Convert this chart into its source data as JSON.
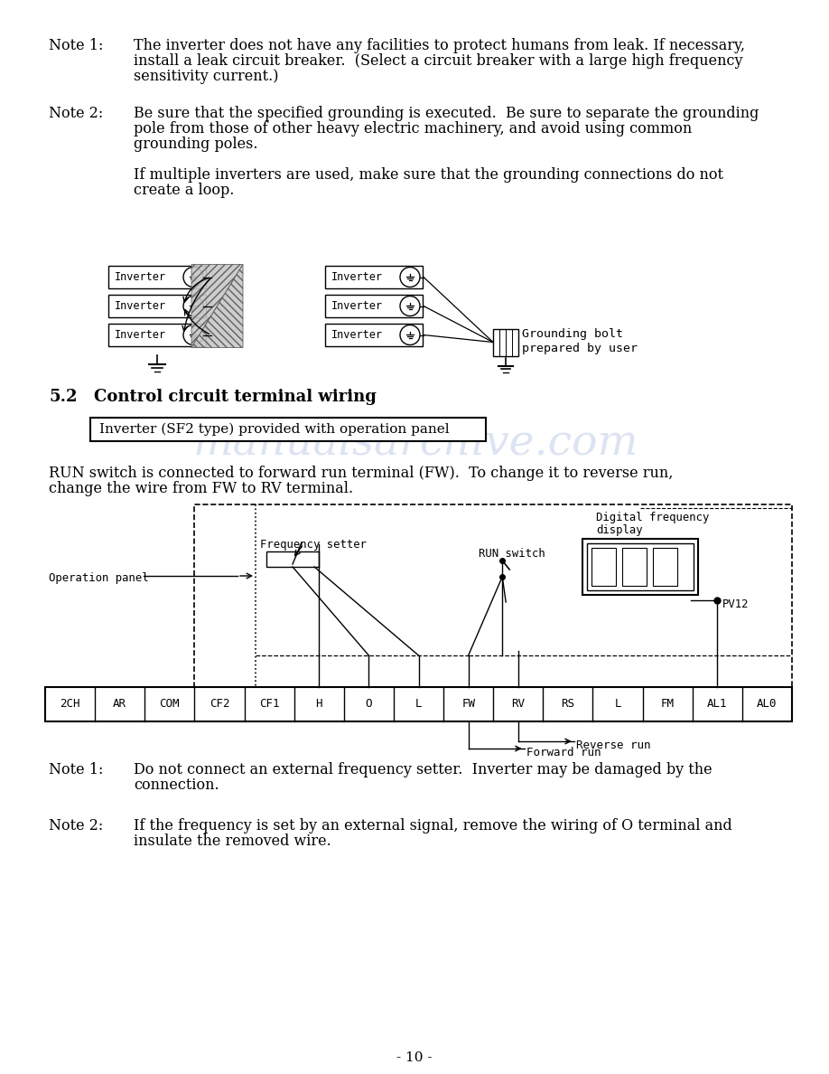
{
  "bg_color": "#ffffff",
  "page_number": "- 10 -",
  "watermark_color": "#c0cce8",
  "note1_label": "Note 1:",
  "note1_lines": [
    "The inverter does not have any facilities to protect humans from leak. If necessary,",
    "install a leak circuit breaker.  (Select a circuit breaker with a large high frequency",
    "sensitivity current.)"
  ],
  "note2_label": "Note 2:",
  "note2_lines": [
    "Be sure that the specified grounding is executed.  Be sure to separate the grounding",
    "pole from those of other heavy electric machinery, and avoid using common",
    "grounding poles."
  ],
  "note2_extra_lines": [
    "If multiple inverters are used, make sure that the grounding connections do not",
    "create a loop."
  ],
  "section_num": "5.2",
  "section_title": "Control circuit terminal wiring",
  "box_text": "Inverter (SF2 type) provided with operation panel",
  "run_lines": [
    "RUN switch is connected to forward run terminal (FW).  To change it to reverse run,",
    "change the wire from FW to RV terminal."
  ],
  "terminals": [
    "2CH",
    "AR",
    "COM",
    "CF2",
    "CF1",
    "H",
    "O",
    "L",
    "FW",
    "RV",
    "RS",
    "L",
    "FM",
    "AL1",
    "AL0"
  ],
  "diag_labels": {
    "dig_freq_1": "Digital frequency",
    "dig_freq_2": "display",
    "run_switch": "RUN switch",
    "freq_setter": "Frequency setter",
    "op_panel": "Operation panel",
    "pv12": "PV12",
    "rev_run": "Reverse run",
    "fwd_run": "Forward run",
    "gnd_bolt_1": "Grounding bolt",
    "gnd_bolt_2": "prepared by user"
  },
  "bnote1_label": "Note 1:",
  "bnote1_lines": [
    "Do not connect an external frequency setter.  Inverter may be damaged by the",
    "connection."
  ],
  "bnote2_label": "Note 2:",
  "bnote2_lines": [
    "If the frequency is set by an external signal, remove the wiring of O terminal and",
    "insulate the removed wire."
  ]
}
